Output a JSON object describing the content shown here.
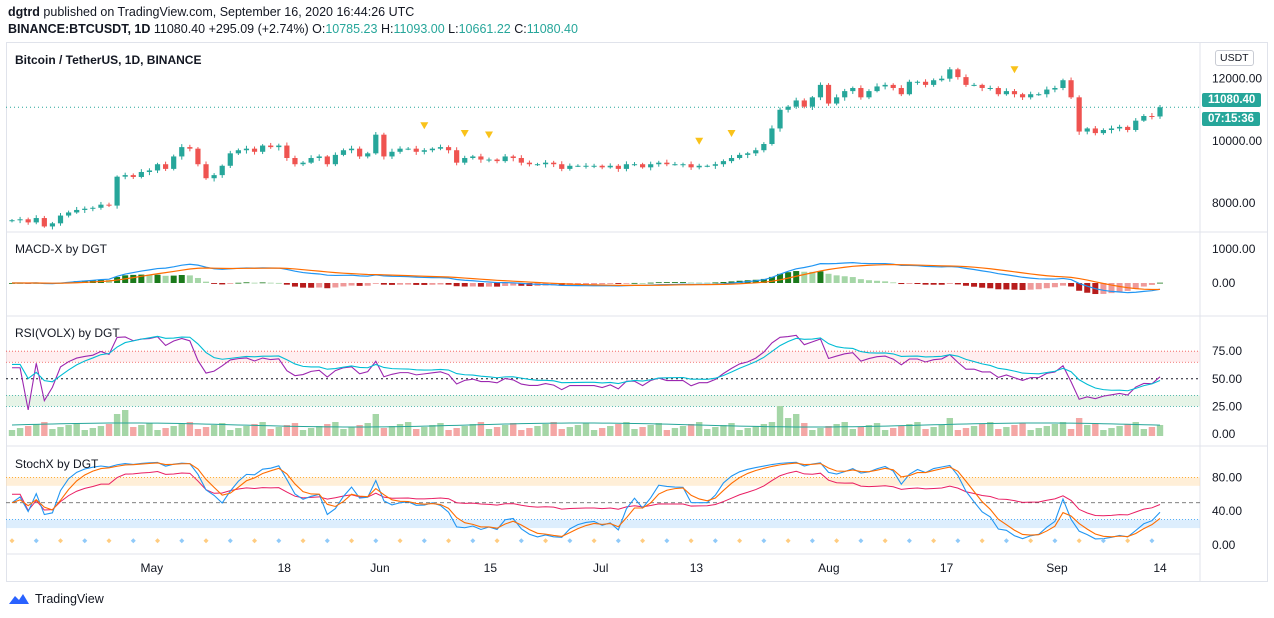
{
  "header": {
    "publisher": "dgtrd",
    "published_line": "published on TradingView.com, September 16, 2020 16:44:26 UTC",
    "symbol": "BINANCE:BTCUSDT, 1D",
    "last": "11080.40",
    "change": "+295.09 (+2.74%)",
    "o_label": "O:",
    "o": "10785.23",
    "h_label": "H:",
    "h": "11093.00",
    "l_label": "L:",
    "l": "10661.22",
    "c_label": "C:",
    "c": "11080.40"
  },
  "currency_badge": "USDT",
  "price_tag": "11080.40",
  "countdown_tag": "07:15:36",
  "footer": {
    "brand": "TradingView"
  },
  "colors": {
    "up": "#26a69a",
    "down": "#ef5350",
    "macd": "#2196f3",
    "signal": "#ff6d00",
    "rsi": "#9c27b0",
    "rsi_sig": "#00bcd4",
    "stoch_k": "#2196f3",
    "stoch_d": "#ff6d00",
    "stoch_m": "#e91e63"
  },
  "chart_data": [
    {
      "type": "candlestick",
      "title": "Bitcoin / TetherUS, 1D, BINANCE",
      "x_ticks": [
        "May",
        "18",
        "Jun",
        "15",
        "Jul",
        "13",
        "Aug",
        "17",
        "Sep",
        "14"
      ],
      "y_ticks": [
        "12000.00",
        "10000.00",
        "8000.00"
      ],
      "ylim": [
        7200,
        12600
      ],
      "close": [
        7450,
        7480,
        7380,
        7520,
        7250,
        7350,
        7600,
        7700,
        7780,
        7820,
        7850,
        7950,
        7920,
        8850,
        8900,
        8840,
        9000,
        9050,
        9250,
        9100,
        9500,
        9800,
        9750,
        9250,
        8800,
        8900,
        9200,
        9600,
        9700,
        9750,
        9650,
        9850,
        9800,
        9850,
        9450,
        9250,
        9300,
        9450,
        9500,
        9250,
        9550,
        9700,
        9750,
        9500,
        9600,
        10200,
        9500,
        9650,
        9750,
        9750,
        9650,
        9700,
        9750,
        9800,
        9700,
        9300,
        9450,
        9500,
        9400,
        9400,
        9350,
        9500,
        9450,
        9300,
        9250,
        9250,
        9300,
        9250,
        9100,
        9200,
        9200,
        9200,
        9200,
        9150,
        9200,
        9100,
        9250,
        9250,
        9150,
        9250,
        9300,
        9250,
        9250,
        9250,
        9150,
        9200,
        9200,
        9250,
        9350,
        9450,
        9550,
        9600,
        9700,
        9900,
        10400,
        11000,
        11100,
        11300,
        11100,
        11400,
        11800,
        11200,
        11400,
        11600,
        11700,
        11400,
        11600,
        11750,
        11800,
        11700,
        11500,
        11900,
        11900,
        11800,
        11950,
        12000,
        12300,
        12050,
        11800,
        11800,
        11700,
        11700,
        11500,
        11600,
        11500,
        11400,
        11500,
        11500,
        11650,
        11700,
        11950,
        11400,
        10300,
        10400,
        10250,
        10350,
        10400,
        10450,
        10350,
        10650,
        10800,
        10785,
        11080
      ]
    },
    {
      "type": "line",
      "title": "MACD-X by DGT",
      "y_ticks": [
        "1000.00",
        "0.00"
      ]
    },
    {
      "type": "line",
      "title": "RSI(VOLX) by DGT",
      "y_ticks": [
        "75.00",
        "50.00",
        "25.00",
        "0.00"
      ],
      "ylim": [
        0,
        100
      ]
    },
    {
      "type": "line",
      "title": "StochX by DGT",
      "y_ticks": [
        "80.00",
        "40.00",
        "0.00"
      ],
      "ylim": [
        0,
        100
      ]
    }
  ]
}
